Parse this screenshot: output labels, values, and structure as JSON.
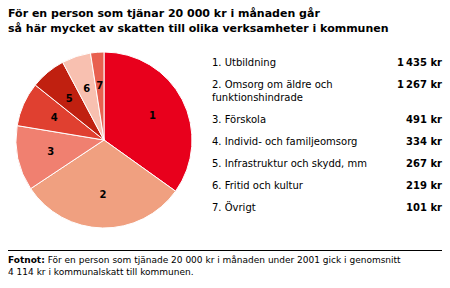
{
  "chart_data": {
    "type": "pie",
    "title": "För en person som tjänar 20 000 kr i månaden går\nså här mycket av skatten till olika verksamheter i kommunen",
    "categories": [
      "1. Utbildning",
      "2. Omsorg om äldre och\nfunktionshindrade",
      "3. Förskola",
      "4. Individ- och familjeomsorg",
      "5. Infrastruktur och skydd, mm",
      "6. Fritid och kultur",
      "7. Övrigt"
    ],
    "values": [
      1435,
      1267,
      491,
      334,
      267,
      219,
      101
    ],
    "value_labels": [
      "1 435 kr",
      "1 267 kr",
      "491 kr",
      "334 kr",
      "267 kr",
      "219 kr",
      "101 kr"
    ],
    "slice_labels": [
      "1",
      "2",
      "3",
      "4",
      "5",
      "6",
      "7"
    ],
    "colors": [
      "#e8001c",
      "#f0a080",
      "#f08070",
      "#e04030",
      "#c02010",
      "#f8c0b0",
      "#e86050"
    ],
    "footnote_bold": "Fotnot:",
    "footnote": "För en person som tjänade 20 000 kr i månaden under 2001 gick i genomsnitt\n4 114 kr i kommunalskatt till kommunen."
  }
}
